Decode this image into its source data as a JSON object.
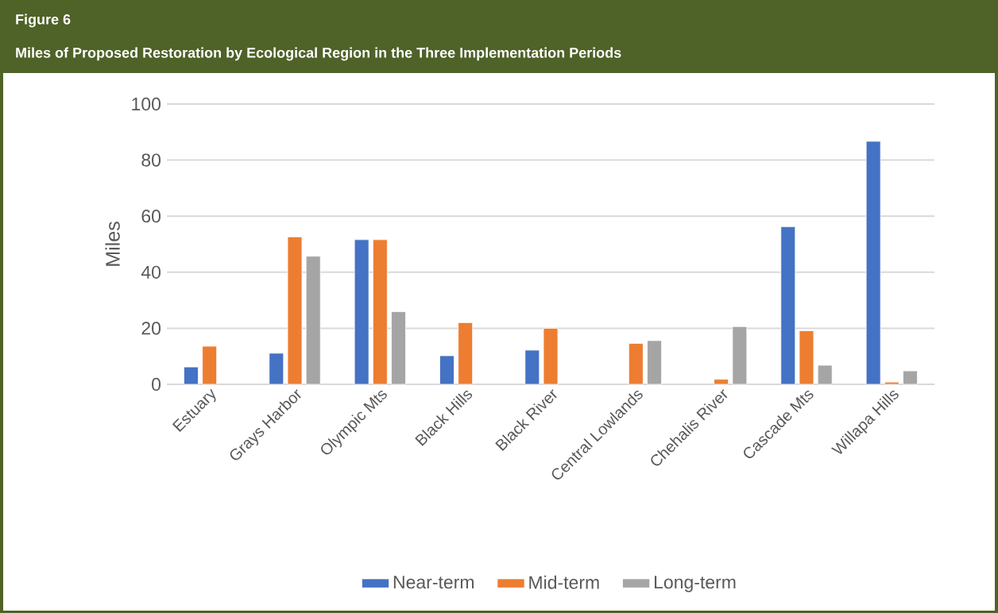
{
  "chart_data": {
    "type": "bar",
    "title": "Figure 6",
    "subtitle": "Miles of Proposed Restoration by Ecological Region in the Three Implementation Periods",
    "ylabel": "Miles",
    "categories": [
      "Estuary",
      "Grays Harbor",
      "Olympic Mts",
      "Black Hills",
      "Black River",
      "Central Lowlands",
      "Chehalis River",
      "Cascade Mts",
      "Willapa Hills"
    ],
    "series": [
      {
        "name": "Near-term",
        "color": "#4472c4",
        "values": [
          6.2,
          11.1,
          51.6,
          10.2,
          12.2,
          null,
          null,
          56.2,
          86.7
        ]
      },
      {
        "name": "Mid-term",
        "color": "#ed7d31",
        "values": [
          13.6,
          52.6,
          51.6,
          22.0,
          20.0,
          14.6,
          1.8,
          19.1,
          0.8
        ]
      },
      {
        "name": "Long-term",
        "color": "#a5a5a5",
        "values": [
          null,
          45.7,
          25.9,
          null,
          null,
          15.6,
          20.6,
          6.8,
          4.8
        ]
      }
    ],
    "ylim": [
      0,
      100
    ],
    "yticks": [
      0,
      20,
      40,
      60,
      80,
      100
    ],
    "grid": "y",
    "legend": "bottom"
  }
}
